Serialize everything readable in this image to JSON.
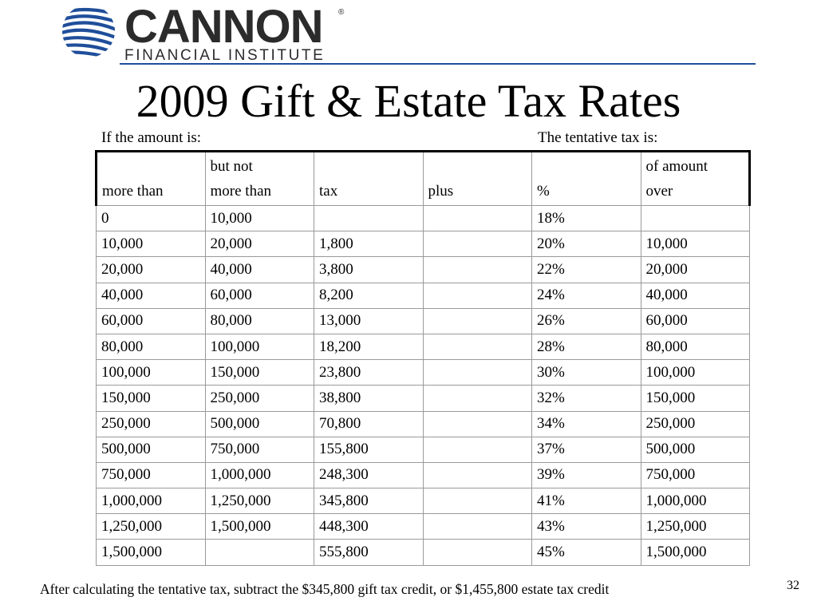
{
  "logo": {
    "name": "CANNON",
    "registered": "®",
    "subtitle": "FINANCIAL INSTITUTE",
    "colors": {
      "mark": "#1f4e9a",
      "text": "#2b2b2b",
      "rule": "#1f4e9a"
    }
  },
  "title": "2009 Gift & Estate Tax Rates",
  "captions": {
    "left": "If the amount is:",
    "right": "The tentative tax is:"
  },
  "table": {
    "headers": [
      [
        "",
        "more than"
      ],
      [
        "but not",
        "more than"
      ],
      [
        "",
        "tax"
      ],
      [
        "",
        "plus"
      ],
      [
        "",
        "%"
      ],
      [
        "of amount",
        "over"
      ]
    ],
    "rows": [
      [
        "0",
        "10,000",
        "",
        "",
        "18%",
        ""
      ],
      [
        "10,000",
        "20,000",
        "1,800",
        "",
        "20%",
        "10,000"
      ],
      [
        "20,000",
        "40,000",
        "3,800",
        "",
        "22%",
        "20,000"
      ],
      [
        "40,000",
        "60,000",
        "8,200",
        "",
        "24%",
        "40,000"
      ],
      [
        "60,000",
        "80,000",
        "13,000",
        "",
        "26%",
        "60,000"
      ],
      [
        "80,000",
        "100,000",
        "18,200",
        "",
        "28%",
        "80,000"
      ],
      [
        "100,000",
        "150,000",
        "23,800",
        "",
        "30%",
        "100,000"
      ],
      [
        "150,000",
        "250,000",
        "38,800",
        "",
        "32%",
        "150,000"
      ],
      [
        "250,000",
        "500,000",
        "70,800",
        "",
        "34%",
        "250,000"
      ],
      [
        "500,000",
        "750,000",
        "155,800",
        "",
        "37%",
        "500,000"
      ],
      [
        "750,000",
        "1,000,000",
        "248,300",
        "",
        "39%",
        "750,000"
      ],
      [
        "1,000,000",
        "1,250,000",
        "345,800",
        "",
        "41%",
        "1,000,000"
      ],
      [
        "1,250,000",
        "1,500,000",
        "448,300",
        "",
        "43%",
        "1,250,000"
      ],
      [
        "1,500,000",
        "",
        "555,800",
        "",
        "45%",
        "1,500,000"
      ]
    ]
  },
  "footnote": "After calculating the tentative tax, subtract the $345,800 gift tax credit, or $1,455,800 estate tax credit",
  "page_number": "32"
}
